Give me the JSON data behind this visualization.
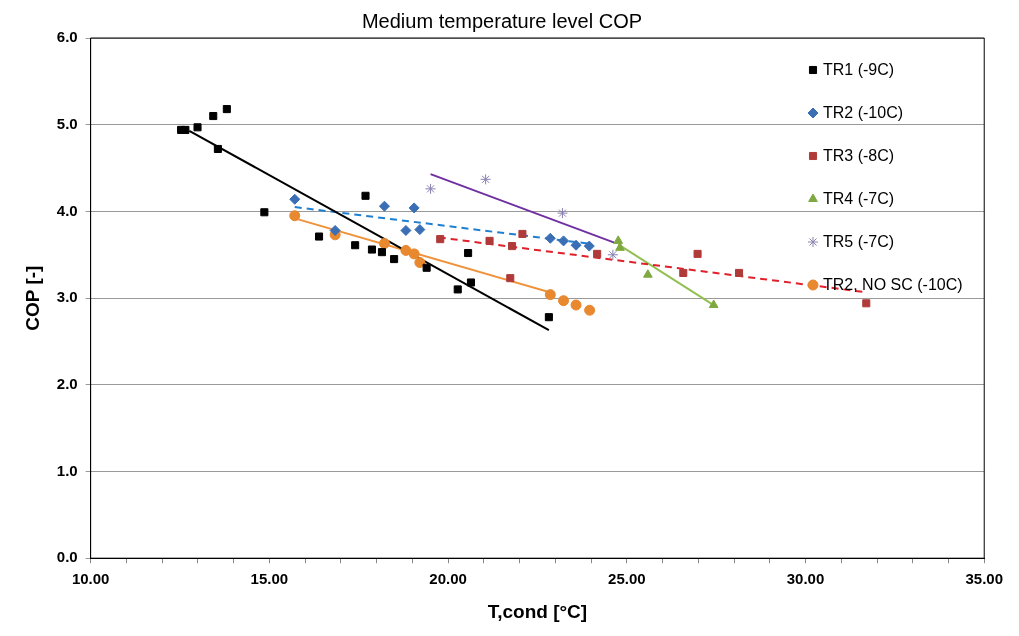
{
  "chart_data": {
    "type": "scatter",
    "title": "Medium temperature level COP",
    "xlabel": "T,cond [°C]",
    "ylabel": "COP [-]",
    "xlim": [
      10,
      35
    ],
    "ylim": [
      0,
      6
    ],
    "xticks": [
      {
        "value": 10,
        "label": "10.00"
      },
      {
        "value": 11,
        "label": null
      },
      {
        "value": 12,
        "label": null
      },
      {
        "value": 13,
        "label": null
      },
      {
        "value": 14,
        "label": null
      },
      {
        "value": 15,
        "label": "15.00"
      },
      {
        "value": 16,
        "label": null
      },
      {
        "value": 17,
        "label": null
      },
      {
        "value": 18,
        "label": null
      },
      {
        "value": 19,
        "label": null
      },
      {
        "value": 20,
        "label": "20.00"
      },
      {
        "value": 21,
        "label": null
      },
      {
        "value": 22,
        "label": null
      },
      {
        "value": 23,
        "label": null
      },
      {
        "value": 24,
        "label": null
      },
      {
        "value": 25,
        "label": "25.00"
      },
      {
        "value": 26,
        "label": null
      },
      {
        "value": 27,
        "label": null
      },
      {
        "value": 28,
        "label": null
      },
      {
        "value": 29,
        "label": null
      },
      {
        "value": 30,
        "label": "30.00"
      },
      {
        "value": 31,
        "label": null
      },
      {
        "value": 32,
        "label": null
      },
      {
        "value": 33,
        "label": null
      },
      {
        "value": 34,
        "label": null
      },
      {
        "value": 35,
        "label": "35.00"
      }
    ],
    "yticks": [
      {
        "value": 0,
        "label": "0.0"
      },
      {
        "value": 1,
        "label": "1.0"
      },
      {
        "value": 2,
        "label": "2.0"
      },
      {
        "value": 3,
        "label": "3.0"
      },
      {
        "value": 4,
        "label": "4.0"
      },
      {
        "value": 5,
        "label": "5.0"
      },
      {
        "value": 6,
        "label": "6.0"
      }
    ],
    "grid": "y",
    "legend": "top right",
    "series": [
      {
        "name": "TR1 (-9C)",
        "color": "#000000",
        "marker": "square",
        "x": [
          12.53,
          12.65,
          12.99,
          13.43,
          13.81,
          13.56,
          14.86,
          16.39,
          17.4,
          17.69,
          17.87,
          18.15,
          18.49,
          19.4,
          20.27,
          20.56,
          20.64,
          22.82
        ],
        "values": [
          4.94,
          4.94,
          4.97,
          5.1,
          5.18,
          4.72,
          3.99,
          3.71,
          3.61,
          4.18,
          3.56,
          3.53,
          3.45,
          3.35,
          3.1,
          3.52,
          3.18,
          2.78
        ]
      },
      {
        "name": "TR2 (-10C)",
        "color": "#3a6fb5",
        "marker": "diamond",
        "x": [
          15.71,
          16.84,
          18.22,
          19.05,
          18.82,
          19.21,
          22.86,
          23.23,
          23.58,
          23.95
        ],
        "values": [
          4.14,
          3.78,
          4.06,
          4.04,
          3.78,
          3.79,
          3.69,
          3.66,
          3.61,
          3.6
        ]
      },
      {
        "name": "TR3 (-8C)",
        "color": "#b03a3a",
        "marker": "square",
        "x": [
          19.78,
          21.16,
          21.79,
          22.08,
          21.74,
          24.17,
          26.98,
          26.58,
          28.14,
          31.7
        ],
        "values": [
          3.68,
          3.66,
          3.6,
          3.74,
          3.23,
          3.51,
          3.51,
          3.29,
          3.29,
          2.94
        ]
      },
      {
        "name": "TR4 (-7C)",
        "color": "#7fa840",
        "marker": "triangle",
        "x": [
          24.76,
          24.81,
          25.59,
          27.43
        ],
        "values": [
          3.66,
          3.58,
          3.27,
          2.92
        ]
      },
      {
        "name": "TR5 (-7C)",
        "color": "#8a82b0",
        "marker": "cross",
        "x": [
          19.51,
          21.05,
          23.2,
          24.61
        ],
        "values": [
          4.26,
          4.37,
          3.98,
          3.5
        ]
      },
      {
        "name": "TR2, NO SC (-10C)",
        "color": "#e8882f",
        "marker": "circle",
        "x": [
          15.71,
          16.84,
          18.22,
          18.82,
          19.05,
          19.21,
          22.86,
          23.23,
          23.58,
          23.96
        ],
        "values": [
          3.95,
          3.73,
          3.63,
          3.55,
          3.51,
          3.41,
          3.04,
          2.97,
          2.92,
          2.86
        ]
      },
      {
        "type": "line",
        "color": "#000000",
        "line_style": "solid",
        "x": [
          12.76,
          22.82
        ],
        "values": [
          4.93,
          2.63
        ]
      },
      {
        "type": "line",
        "color": "#1f7fd0",
        "line_style": "dashed",
        "x": [
          15.71,
          23.9
        ],
        "values": [
          4.05,
          3.63
        ]
      },
      {
        "type": "line",
        "color": "#e0202a",
        "line_style": "dashed",
        "x": [
          19.74,
          31.64
        ],
        "values": [
          3.7,
          3.07
        ]
      },
      {
        "type": "line",
        "color": "#92c050",
        "line_style": "solid",
        "x": [
          24.76,
          27.43
        ],
        "values": [
          3.62,
          2.92
        ]
      },
      {
        "type": "line",
        "color": "#7030a0",
        "line_style": "solid",
        "x": [
          19.51,
          24.65
        ],
        "values": [
          4.43,
          3.64
        ]
      },
      {
        "type": "line",
        "color": "#f0923a",
        "line_style": "solid",
        "x": [
          15.71,
          22.82
        ],
        "values": [
          3.92,
          3.07
        ]
      }
    ]
  }
}
